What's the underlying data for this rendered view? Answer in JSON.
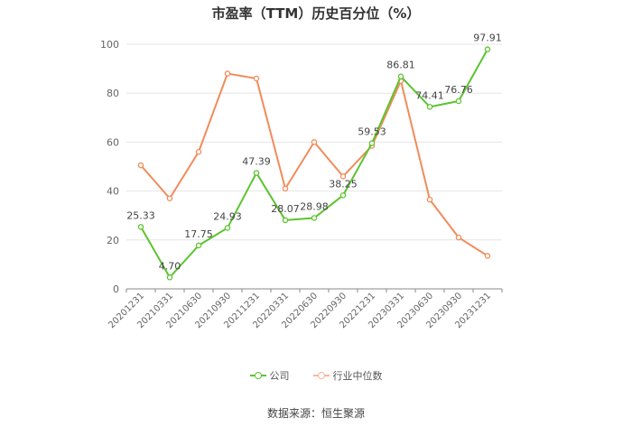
{
  "title": "市盈率（TTM）历史百分位（%）",
  "source": "数据来源：恒生聚源",
  "colors": {
    "company": "#5cc42f",
    "industry": "#f28b5a",
    "grid": "#e6e6e6",
    "axis": "#888888"
  },
  "legend": [
    "公司",
    "行业中位数"
  ],
  "chart_data": {
    "type": "line",
    "categories": [
      "20201231",
      "20210331",
      "20210630",
      "20210930",
      "20211231",
      "20220331",
      "20220630",
      "20220930",
      "20221231",
      "20230331",
      "20230630",
      "20230930",
      "20231231"
    ],
    "ylim": [
      0,
      100
    ],
    "yticks": [
      0,
      20,
      40,
      60,
      80,
      100
    ],
    "series": [
      {
        "name": "公司",
        "values": [
          25.33,
          4.7,
          17.75,
          24.93,
          47.39,
          28.07,
          28.98,
          38.25,
          59.53,
          86.81,
          74.41,
          76.76,
          97.91
        ],
        "labels": [
          "25.33",
          "4.70",
          "17.75",
          "24.93",
          "47.39",
          "28.07",
          "28.98",
          "38.25",
          "59.53",
          "86.81",
          "74.41",
          "76.76",
          "97.91"
        ]
      },
      {
        "name": "行业中位数",
        "values": [
          50.5,
          37.0,
          56.0,
          88.0,
          86.0,
          41.0,
          60.0,
          46.0,
          58.5,
          85.0,
          36.5,
          21.0,
          13.5
        ]
      }
    ]
  }
}
